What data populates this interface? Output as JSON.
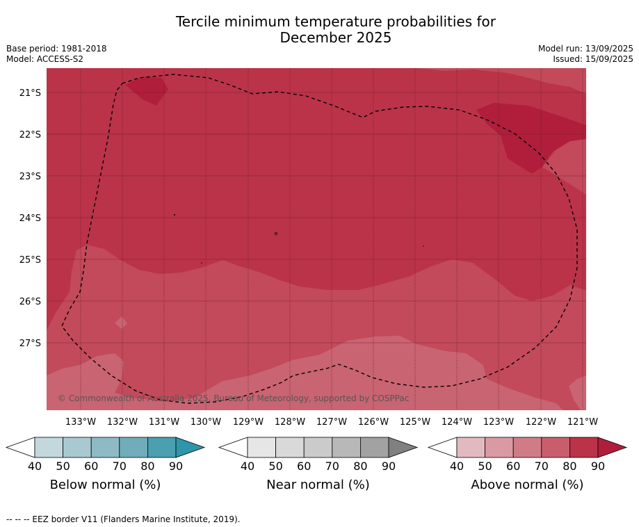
{
  "title_line1": "Tercile minimum temperature probabilities for",
  "title_line2": "December 2025",
  "base_period": "Base period: 1981-2018",
  "model": "Model: ACCESS-S2",
  "model_run": "Model run: 13/09/2025",
  "issued": "Issued: 15/09/2025",
  "copyright": "© Commonwealth of Australia 2025, Bureau of Meteorology, supported by COSPPac",
  "latitudes": [
    "21°S",
    "22°S",
    "23°S",
    "24°S",
    "25°S",
    "26°S",
    "27°S"
  ],
  "longitudes": [
    "133°W",
    "132°W",
    "131°W",
    "130°W",
    "129°W",
    "128°W",
    "127°W",
    "126°W",
    "125°W",
    "124°W",
    "123°W",
    "122°W",
    "121°W"
  ],
  "colorbars": [
    {
      "title": "Below normal (%)",
      "ticks": [
        "40",
        "50",
        "60",
        "70",
        "80",
        "90"
      ],
      "colors": [
        "#c2d8dd",
        "#a8c9cf",
        "#8dbac4",
        "#70acb9",
        "#4a9fb0"
      ],
      "arrow_color": "#2f95aa"
    },
    {
      "title": "Near normal (%)",
      "ticks": [
        "40",
        "50",
        "60",
        "70",
        "80",
        "90"
      ],
      "colors": [
        "#e6e6e6",
        "#d9d9d9",
        "#cbcbcb",
        "#b8b8b8",
        "#a2a2a2"
      ],
      "arrow_color": "#808080"
    },
    {
      "title": "Above normal (%)",
      "ticks": [
        "40",
        "50",
        "60",
        "70",
        "80",
        "90"
      ],
      "colors": [
        "#e3b9c0",
        "#d99aa3",
        "#d07c87",
        "#c85e6c",
        "#bb3349"
      ],
      "arrow_color": "#b01e3c"
    }
  ],
  "map_colors": {
    "above_80_90": "#bb3349",
    "above_90": "#b01e3c",
    "above_70_80": "#c24a5a",
    "above_60_70": "#c96472"
  },
  "footer": "--  --  -- EEZ border V11 (Flanders Marine Institute, 2019)."
}
